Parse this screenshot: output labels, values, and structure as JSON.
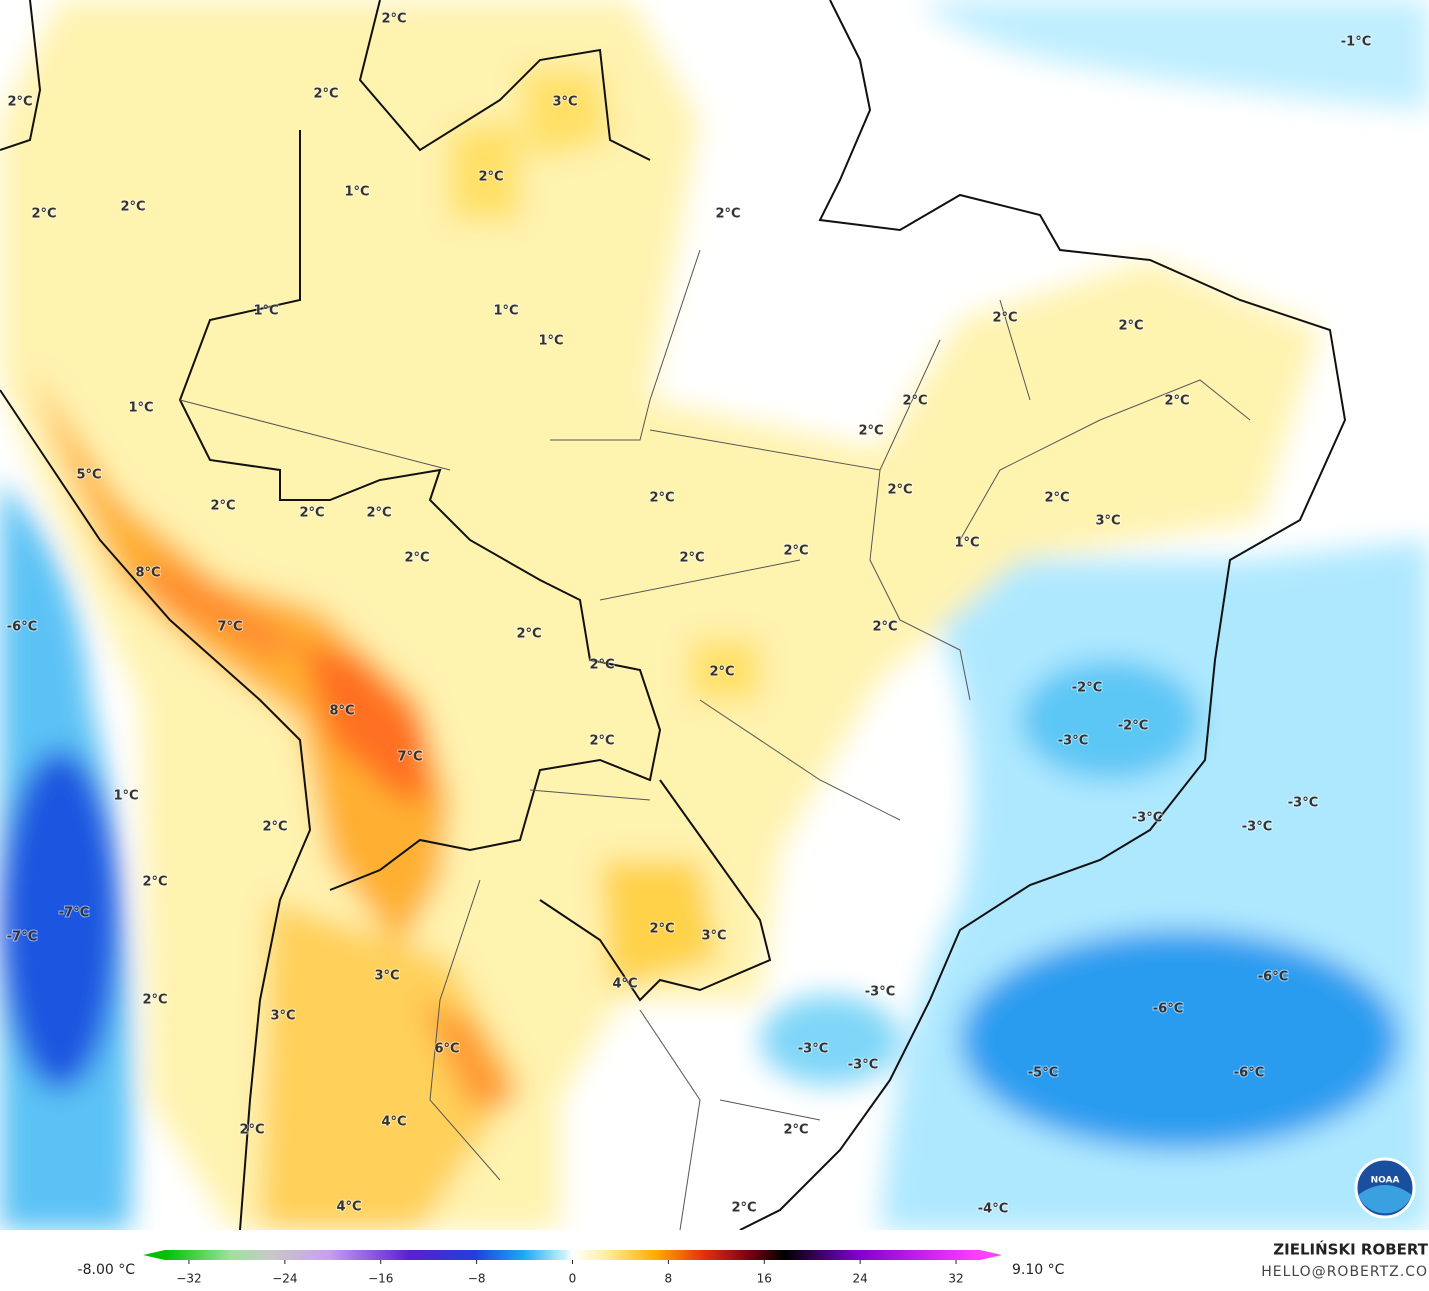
{
  "map": {
    "labels": [
      "2°C",
      "2°C",
      "3°C",
      "2°C",
      "2°C",
      "1°C",
      "2°C",
      "2°C",
      "2°C",
      "1°C",
      "1°C",
      "1°C",
      "2°C",
      "2°C",
      "1°C",
      "2°C",
      "2°C",
      "2°C",
      "5°C",
      "2°C",
      "2°C",
      "2°C",
      "3°C",
      "2°C",
      "2°C",
      "2°C",
      "2°C",
      "2°C",
      "1°C",
      "2°C",
      "8°C",
      "-6°C",
      "7°C",
      "2°C",
      "2°C",
      "2°C",
      "2°C",
      "-2°C",
      "-2°C",
      "-3°C",
      "8°C",
      "7°C",
      "2°C",
      "1°C",
      "2°C",
      "-3°C",
      "-3°C",
      "-3°C",
      "2°C",
      "-7°C",
      "-7°C",
      "2°C",
      "3°C",
      "3°C",
      "-6°C",
      "4°C",
      "-3°C",
      "2°C",
      "-6°C",
      "3°C",
      "6°C",
      "-3°C",
      "-3°C",
      "-5°C",
      "-6°C",
      "4°C",
      "2°C",
      "2°C",
      "4°C",
      "-4°C",
      "2°C",
      "-1°C"
    ],
    "colorbar": {
      "min_label": "-8.00 °C",
      "max_label": "9.10 °C",
      "range": [
        -34,
        34
      ],
      "ticks": [
        {
          "value": -32,
          "label": "−32"
        },
        {
          "value": -24,
          "label": "−24"
        },
        {
          "value": -16,
          "label": "−16"
        },
        {
          "value": -8,
          "label": "−8"
        },
        0,
        8,
        16,
        24,
        32
      ]
    },
    "credit": {
      "name": "ZIELIŃSKI ROBERT",
      "email": "HELLO@ROBERTZ.CO"
    },
    "logo": "NOAA"
  }
}
